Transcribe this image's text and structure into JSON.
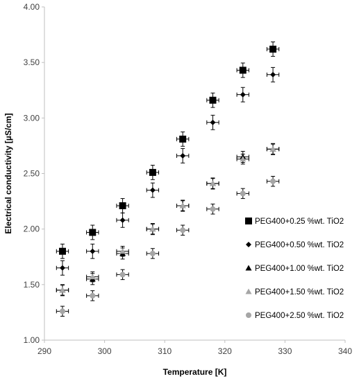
{
  "chart_data": {
    "type": "scatter",
    "xlabel": "Temperature [K]",
    "ylabel": "Electrical conductivity [µS/cm]",
    "xlim": [
      290,
      340
    ],
    "ylim": [
      1.0,
      4.0
    ],
    "x_ticks": [
      "290",
      "300",
      "310",
      "320",
      "330",
      "340"
    ],
    "y_ticks": [
      "1.00",
      "1.50",
      "2.00",
      "2.50",
      "3.00",
      "3.50",
      "4.00"
    ],
    "grid": false,
    "error_bars": true,
    "legend_position": "bottom-right",
    "x": [
      293,
      298,
      303,
      308,
      313,
      318,
      323,
      328
    ],
    "series": [
      {
        "name": "PEG400+0.25 %wt. TiO2",
        "marker": "square",
        "color": "#000000",
        "values": [
          1.8,
          1.97,
          2.21,
          2.51,
          2.81,
          3.16,
          3.43,
          3.62
        ],
        "y_err": 0.065
      },
      {
        "name": "PEG400+0.50 %wt. TiO2",
        "marker": "diamond",
        "color": "#000000",
        "values": [
          1.65,
          1.8,
          2.08,
          2.35,
          2.66,
          2.96,
          3.21,
          3.39
        ],
        "y_err": 0.065
      },
      {
        "name": "PEG400+1.00 %wt. TiO2",
        "marker": "triangle",
        "color": "#000000",
        "values": [
          1.45,
          1.55,
          1.78,
          2.0,
          2.21,
          2.41,
          2.65,
          2.72
        ],
        "y_err": 0.05
      },
      {
        "name": "PEG400+1.50 %wt. TiO2",
        "marker": "triangle",
        "color": "#a6a6a6",
        "values": [
          1.45,
          1.57,
          1.8,
          2.0,
          2.21,
          2.41,
          2.63,
          2.72
        ],
        "y_err": 0.045
      },
      {
        "name": "PEG400+2.50 %wt. TiO2",
        "marker": "circle",
        "color": "#a6a6a6",
        "values": [
          1.26,
          1.4,
          1.59,
          1.78,
          1.99,
          2.18,
          2.32,
          2.43
        ],
        "y_err": 0.045
      }
    ]
  }
}
